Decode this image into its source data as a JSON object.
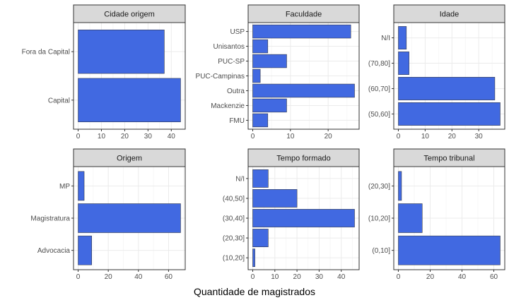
{
  "chart_data": [
    {
      "type": "bar",
      "orientation": "horizontal",
      "title": "Cidade origem",
      "categories": [
        "Capital",
        "Fora da Capital"
      ],
      "values": [
        44,
        37
      ],
      "xlim": [
        0,
        44
      ],
      "xticks": [
        0,
        10,
        20,
        30,
        40
      ],
      "bar_color": "#4169E1"
    },
    {
      "type": "bar",
      "orientation": "horizontal",
      "title": "Faculdade",
      "categories": [
        "FMU",
        "Mackenzie",
        "Outra",
        "PUC-Campinas",
        "PUC-SP",
        "Unisantos",
        "USP"
      ],
      "values": [
        4,
        9,
        27,
        2,
        9,
        4,
        26
      ],
      "xlim": [
        0,
        27
      ],
      "xticks": [
        0,
        10,
        20
      ],
      "bar_color": "#4169E1"
    },
    {
      "type": "bar",
      "orientation": "horizontal",
      "title": "Idade",
      "categories": [
        "(50,60]",
        "(60,70]",
        "(70,80]",
        "N/I"
      ],
      "values": [
        38,
        36,
        4,
        3
      ],
      "xlim": [
        0,
        38
      ],
      "xticks": [
        0,
        10,
        20,
        30
      ],
      "bar_color": "#4169E1"
    },
    {
      "type": "bar",
      "orientation": "horizontal",
      "title": "Origem",
      "categories": [
        "Advocacia",
        "Magistratura",
        "MP"
      ],
      "values": [
        9,
        68,
        4
      ],
      "xlim": [
        0,
        68
      ],
      "xticks": [
        0,
        20,
        40,
        60
      ],
      "bar_color": "#4169E1"
    },
    {
      "type": "bar",
      "orientation": "horizontal",
      "title": "Tempo formado",
      "categories": [
        "(10,20]",
        "(20,30]",
        "(30,40]",
        "(40,50]",
        "N/I"
      ],
      "values": [
        1,
        7,
        46,
        20,
        7
      ],
      "xlim": [
        0,
        46
      ],
      "xticks": [
        0,
        10,
        20,
        30,
        40
      ],
      "bar_color": "#4169E1"
    },
    {
      "type": "bar",
      "orientation": "horizontal",
      "title": "Tempo tribunal",
      "categories": [
        "(0,10]",
        "(10,20]",
        "(20,30]"
      ],
      "values": [
        64,
        15,
        2
      ],
      "xlim": [
        0,
        64
      ],
      "xticks": [
        0,
        20,
        40,
        60
      ],
      "bar_color": "#4169E1"
    }
  ],
  "xlabel": "Quantidade de magistrados"
}
